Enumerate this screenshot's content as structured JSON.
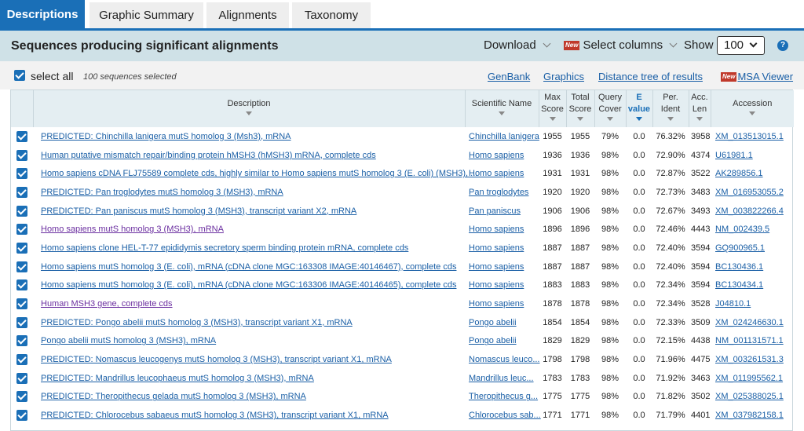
{
  "tabs": [
    {
      "label": "Descriptions"
    },
    {
      "label": "Graphic Summary"
    },
    {
      "label": "Alignments"
    },
    {
      "label": "Taxonomy"
    }
  ],
  "header": {
    "title": "Sequences producing significant alignments",
    "download": "Download",
    "new_badge": "New",
    "select_columns": "Select columns",
    "show": "Show",
    "show_value": "100",
    "help": "?"
  },
  "selection": {
    "select_all": "select all",
    "count": "100 sequences selected",
    "links": {
      "genbank": "GenBank",
      "graphics": "Graphics",
      "distance_tree": "Distance tree of results",
      "msa_viewer": "MSA Viewer"
    }
  },
  "table": {
    "columns": {
      "description": "Description",
      "scientific_name": "Scientific Name",
      "max_score_1": "Max",
      "max_score_2": "Score",
      "total_score_1": "Total",
      "total_score_2": "Score",
      "query_cover_1": "Query",
      "query_cover_2": "Cover",
      "evalue_1": "E",
      "evalue_2": "value",
      "per_ident_1": "Per.",
      "per_ident_2": "Ident",
      "acc_len_1": "Acc.",
      "acc_len_2": "Len",
      "accession": "Accession"
    },
    "rows": [
      {
        "desc": "PREDICTED: Chinchilla lanigera mutS homolog 3 (Msh3), mRNA",
        "sci": "Chinchilla lanigera",
        "max": "1955",
        "total": "1955",
        "cover": "79%",
        "e": "0.0",
        "ident": "76.32%",
        "len": "3958",
        "acc": "XM_013513015.1"
      },
      {
        "desc": "Human putative mismatch repair/binding protein hMSH3 (hMSH3) mRNA, complete cds",
        "sci": "Homo sapiens",
        "max": "1936",
        "total": "1936",
        "cover": "98%",
        "e": "0.0",
        "ident": "72.90%",
        "len": "4374",
        "acc": "U61981.1"
      },
      {
        "desc": "Homo sapiens cDNA FLJ75589 complete cds, highly similar to Homo sapiens mutS homolog 3 (E. coli) (MSH3), ...",
        "sci": "Homo sapiens",
        "max": "1931",
        "total": "1931",
        "cover": "98%",
        "e": "0.0",
        "ident": "72.87%",
        "len": "3522",
        "acc": "AK289856.1"
      },
      {
        "desc": "PREDICTED: Pan troglodytes mutS homolog 3 (MSH3), mRNA",
        "sci": "Pan troglodytes",
        "max": "1920",
        "total": "1920",
        "cover": "98%",
        "e": "0.0",
        "ident": "72.73%",
        "len": "3483",
        "acc": "XM_016953055.2"
      },
      {
        "desc": "PREDICTED: Pan paniscus mutS homolog 3 (MSH3), transcript variant X2, mRNA",
        "sci": "Pan paniscus",
        "max": "1906",
        "total": "1906",
        "cover": "98%",
        "e": "0.0",
        "ident": "72.67%",
        "len": "3493",
        "acc": "XM_003822266.4"
      },
      {
        "desc": "Homo sapiens mutS homolog 3 (MSH3), mRNA",
        "sci": "Homo sapiens",
        "max": "1896",
        "total": "1896",
        "cover": "98%",
        "e": "0.0",
        "ident": "72.46%",
        "len": "4443",
        "acc": "NM_002439.5",
        "visited": true
      },
      {
        "desc": "Homo sapiens clone HEL-T-77 epididymis secretory sperm binding protein mRNA, complete cds",
        "sci": "Homo sapiens",
        "max": "1887",
        "total": "1887",
        "cover": "98%",
        "e": "0.0",
        "ident": "72.40%",
        "len": "3594",
        "acc": "GQ900965.1"
      },
      {
        "desc": "Homo sapiens mutS homolog 3 (E. coli), mRNA (cDNA clone MGC:163308 IMAGE:40146467), complete cds",
        "sci": "Homo sapiens",
        "max": "1887",
        "total": "1887",
        "cover": "98%",
        "e": "0.0",
        "ident": "72.40%",
        "len": "3594",
        "acc": "BC130436.1"
      },
      {
        "desc": "Homo sapiens mutS homolog 3 (E. coli), mRNA (cDNA clone MGC:163306 IMAGE:40146465), complete cds",
        "sci": "Homo sapiens",
        "max": "1883",
        "total": "1883",
        "cover": "98%",
        "e": "0.0",
        "ident": "72.34%",
        "len": "3594",
        "acc": "BC130434.1"
      },
      {
        "desc": "Human MSH3 gene, complete cds",
        "sci": "Homo sapiens",
        "max": "1878",
        "total": "1878",
        "cover": "98%",
        "e": "0.0",
        "ident": "72.34%",
        "len": "3528",
        "acc": "J04810.1",
        "visited": true
      },
      {
        "desc": "PREDICTED: Pongo abelii mutS homolog 3 (MSH3), transcript variant X1, mRNA",
        "sci": "Pongo abelii",
        "max": "1854",
        "total": "1854",
        "cover": "98%",
        "e": "0.0",
        "ident": "72.33%",
        "len": "3509",
        "acc": "XM_024246630.1"
      },
      {
        "desc": "Pongo abelii mutS homolog 3 (MSH3), mRNA",
        "sci": "Pongo abelii",
        "max": "1829",
        "total": "1829",
        "cover": "98%",
        "e": "0.0",
        "ident": "72.15%",
        "len": "4438",
        "acc": "NM_001131571.1"
      },
      {
        "desc": "PREDICTED: Nomascus leucogenys mutS homolog 3 (MSH3), transcript variant X1, mRNA",
        "sci": "Nomascus leuco...",
        "max": "1798",
        "total": "1798",
        "cover": "98%",
        "e": "0.0",
        "ident": "71.96%",
        "len": "4475",
        "acc": "XM_003261531.3"
      },
      {
        "desc": "PREDICTED: Mandrillus leucophaeus mutS homolog 3 (MSH3), mRNA",
        "sci": "Mandrillus leuc...",
        "max": "1783",
        "total": "1783",
        "cover": "98%",
        "e": "0.0",
        "ident": "71.92%",
        "len": "3463",
        "acc": "XM_011995562.1"
      },
      {
        "desc": "PREDICTED: Theropithecus gelada mutS homolog 3 (MSH3), mRNA",
        "sci": "Theropithecus g...",
        "max": "1775",
        "total": "1775",
        "cover": "98%",
        "e": "0.0",
        "ident": "71.82%",
        "len": "3502",
        "acc": "XM_025388025.1"
      },
      {
        "desc": "PREDICTED: Chlorocebus sabaeus mutS homolog 3 (MSH3), transcript variant X1, mRNA",
        "sci": "Chlorocebus sab...",
        "max": "1771",
        "total": "1771",
        "cover": "98%",
        "e": "0.0",
        "ident": "71.79%",
        "len": "4401",
        "acc": "XM_037982158.1"
      }
    ]
  },
  "colors": {
    "accent": "#1a6fb7",
    "header_bg": "#cfe1e7",
    "link": "#1a5fa6",
    "visited_link": "#6b2fa0",
    "new_badge": "#c0392b"
  }
}
